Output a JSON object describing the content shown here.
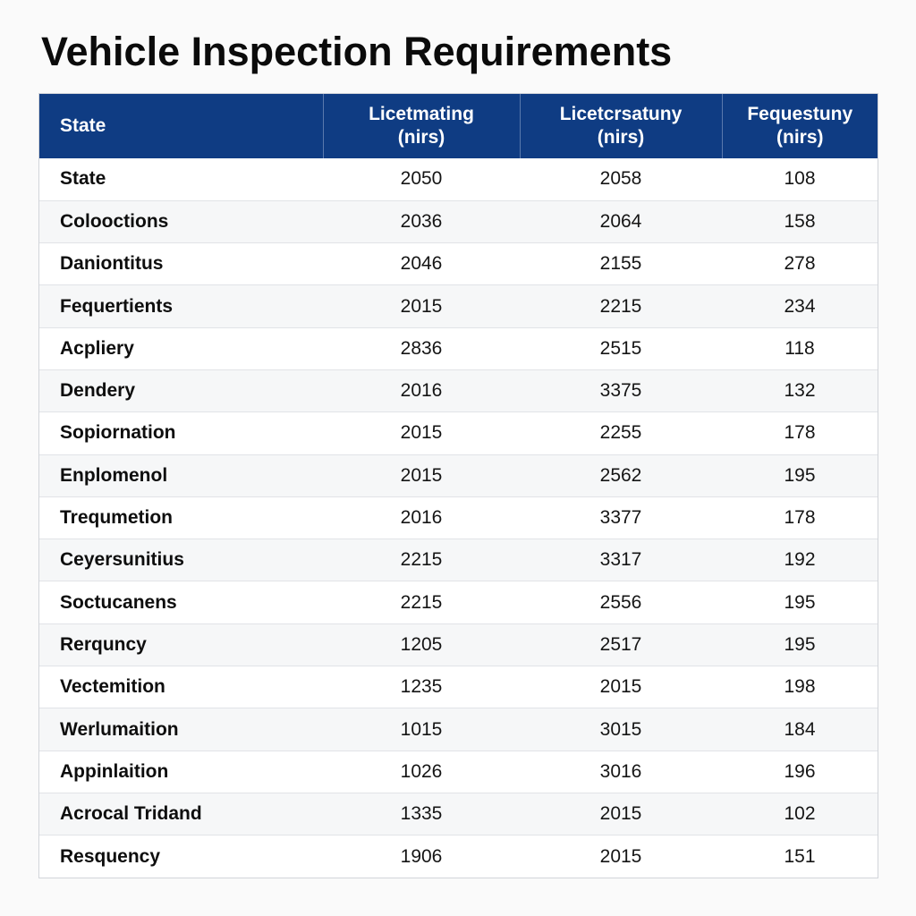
{
  "title": "Vehicle Inspection Requirements",
  "header": {
    "state": "State",
    "col_a": [
      "Licetmating",
      "(nirs)"
    ],
    "col_b": [
      "Licetcrsatuny",
      "(nirs)"
    ],
    "col_c": [
      "Fequestuny",
      "(nirs)"
    ]
  },
  "rows": [
    {
      "state": "State",
      "a": "2050",
      "b": "2058",
      "c": "108"
    },
    {
      "state": "Colooctions",
      "a": "2036",
      "b": "2064",
      "c": "158"
    },
    {
      "state": "Daniontitus",
      "a": "2046",
      "b": "2155",
      "c": "278"
    },
    {
      "state": "Fequertients",
      "a": "2015",
      "b": "2215",
      "c": "234"
    },
    {
      "state": "Acpliery",
      "a": "2836",
      "b": "2515",
      "c": "118"
    },
    {
      "state": "Dendery",
      "a": "2016",
      "b": "3375",
      "c": "132"
    },
    {
      "state": "Sopiornation",
      "a": "2015",
      "b": "2255",
      "c": "178"
    },
    {
      "state": "Enplomenol",
      "a": "2015",
      "b": "2562",
      "c": "195"
    },
    {
      "state": "Trequmetion",
      "a": "2016",
      "b": "3377",
      "c": "178"
    },
    {
      "state": "Ceyersunitius",
      "a": "2215",
      "b": "3317",
      "c": "192"
    },
    {
      "state": "Soctucanens",
      "a": "2215",
      "b": "2556",
      "c": "195"
    },
    {
      "state": "Rerquncy",
      "a": "1205",
      "b": "2517",
      "c": "195"
    },
    {
      "state": "Vectemition",
      "a": "1235",
      "b": "2015",
      "c": "198"
    },
    {
      "state": "Werlumaition",
      "a": "1015",
      "b": "3015",
      "c": "184"
    },
    {
      "state": "Appinlaition",
      "a": "1026",
      "b": "3016",
      "c": "196"
    },
    {
      "state": "Acrocal Tridand",
      "a": "1335",
      "b": "2015",
      "c": "102"
    },
    {
      "state": "Resquency",
      "a": "1906",
      "b": "2015",
      "c": "151"
    }
  ],
  "colors": {
    "header_bg": "#0f3c83",
    "header_text": "#ffffff",
    "row_alt": "#f6f7f8",
    "border": "#d2d5da"
  }
}
